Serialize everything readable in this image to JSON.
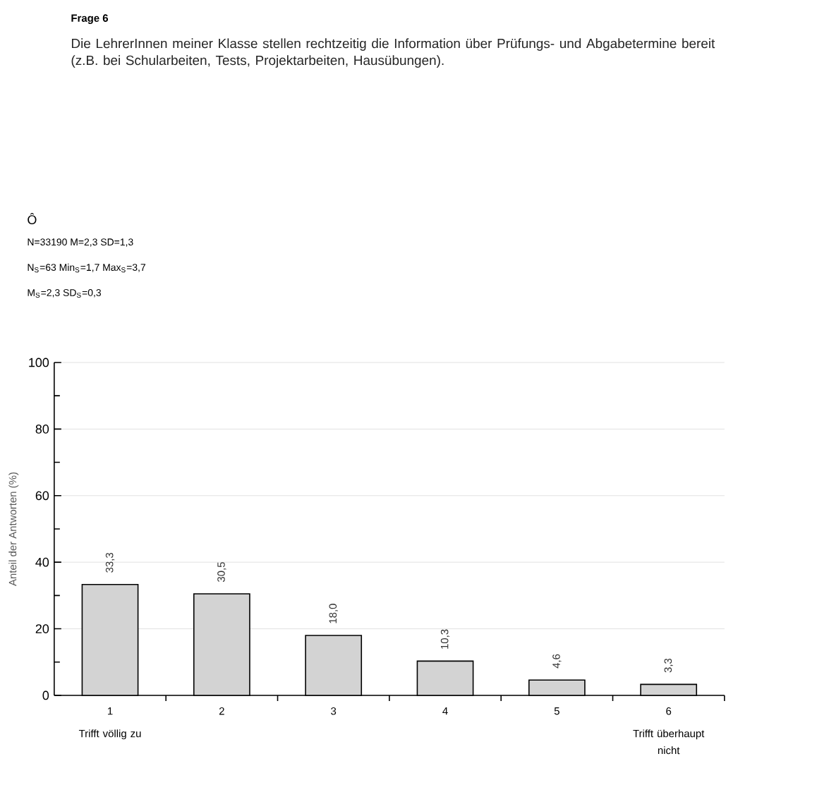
{
  "chart_data": {
    "type": "bar",
    "title": "Frage 6",
    "subtitle": "Die LehrerInnen meiner Klasse stellen rechtzeitig die Information über Prüfungs- und Abgabetermine bereit (z.B. bei Schularbeiten, Tests, Projektarbeiten, Hausübungen).",
    "annotations": [
      "Ô",
      "N=33190 M=2,3 SD=1,3",
      "N$_{S}$=63 Min$_{S}$=1,7 Max$_{S}$=3,7",
      "M$_{S}$=2,3 SD$_{S}$=0,3",
      "Trifft völlig zu",
      "Trifft überhaupt nicht"
    ],
    "ylabel": "Anteil der Antworten (%)",
    "categories": [
      "1",
      "2",
      "3",
      "4",
      "5",
      "6"
    ],
    "values": [
      33.3,
      30.5,
      18.0,
      10.3,
      4.6,
      3.3
    ],
    "value_labels": [
      "33,3",
      "30,5",
      "18,0",
      "10,3",
      "4,6",
      "3,3"
    ],
    "color": "#d3d3d3",
    "ylim": [
      0,
      100
    ],
    "yticks": [
      0,
      20,
      40,
      60,
      80,
      100
    ],
    "grid": "y"
  }
}
